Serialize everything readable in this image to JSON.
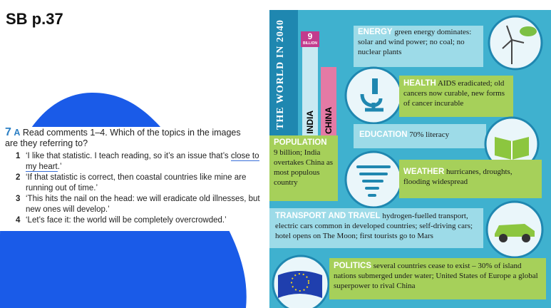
{
  "page_label": "SB p.37",
  "exercise": {
    "number": "7",
    "letter": "A",
    "instruction": "Read comments 1–4. Which of the topics in the images are they referring to?",
    "items": [
      {
        "n": "1",
        "before": "‘I like that statistic. I teach reading, so it’s an issue that’s ",
        "underlined": "close to my heart",
        "after": ".’"
      },
      {
        "n": "2",
        "before": "‘If that statistic is correct, then coastal countries like mine are running out of time.’",
        "underlined": "",
        "after": ""
      },
      {
        "n": "3",
        "before": "‘This hits the nail on the head: we will eradicate old illnesses, but new ones will develop.’",
        "underlined": "",
        "after": ""
      },
      {
        "n": "4",
        "before": "‘Let’s face it: the world will be completely overcrowded.’",
        "underlined": "",
        "after": ""
      }
    ]
  },
  "poster": {
    "title": "THE WORLD IN 2040",
    "badge_number": "9",
    "badge_text": "BILLION",
    "col_india": "INDIA",
    "col_china": "CHINA",
    "energy": {
      "title": "ENERGY",
      "text": "green energy dominates: solar and wind power; no coal; no nuclear plants"
    },
    "health": {
      "title": "HEALTH",
      "text": "AIDS eradicated; old cancers now curable, new forms of cancer incurable"
    },
    "population": {
      "title": "POPULATION",
      "text": "9 billion; India overtakes China as most populous country"
    },
    "education": {
      "title": "EDUCATION",
      "text": "70% literacy"
    },
    "weather": {
      "title": "WEATHER",
      "text": "hurricanes, droughts, flooding widespread"
    },
    "transport": {
      "title": "TRANSPORT AND TRAVEL",
      "text": "hydrogen-fuelled transport, electric cars common in developed countries; self-driving cars; hotel opens on The Moon; first tourists go to Mars"
    },
    "politics": {
      "title": "POLITICS",
      "text": "several countries cease to exist – 30% of island nations submerged under water; United States of Europe a global superpower to rival China"
    }
  }
}
